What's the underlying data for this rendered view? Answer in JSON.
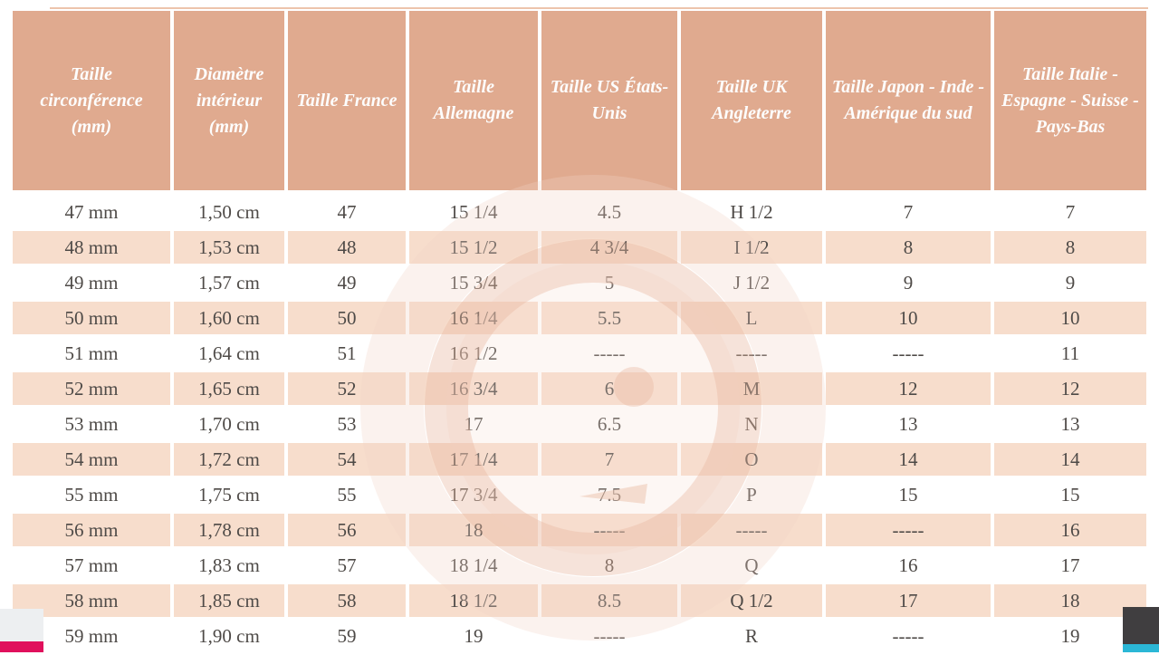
{
  "chart_data": {
    "type": "table",
    "title": "",
    "columns": [
      "Taille circonférence (mm)",
      "Diamètre intérieur (mm)",
      "Taille France",
      "Taille Allemagne",
      "Taille US États-Unis",
      "Taille UK Angleterre",
      "Taille Japon - Inde - Amérique du sud",
      "Taille Italie - Espagne - Suisse - Pays-Bas"
    ],
    "rows": [
      [
        "47 mm",
        "1,50 cm",
        "47",
        "15 1/4",
        "4.5",
        "H 1/2",
        "7",
        "7"
      ],
      [
        "48 mm",
        "1,53 cm",
        "48",
        "15 1/2",
        "4 3/4",
        "I 1/2",
        "8",
        "8"
      ],
      [
        "49 mm",
        "1,57 cm",
        "49",
        "15 3/4",
        "5",
        "J 1/2",
        "9",
        "9"
      ],
      [
        "50 mm",
        "1,60 cm",
        "50",
        "16 1/4",
        "5.5",
        "L",
        "10",
        "10"
      ],
      [
        "51 mm",
        "1,64 cm",
        "51",
        "16 1/2",
        "-----",
        "-----",
        "-----",
        "11"
      ],
      [
        "52 mm",
        "1,65 cm",
        "52",
        "16 3/4",
        "6",
        "M",
        "12",
        "12"
      ],
      [
        "53 mm",
        "1,70 cm",
        "53",
        "17",
        "6.5",
        "N",
        "13",
        "13"
      ],
      [
        "54 mm",
        "1,72 cm",
        "54",
        "17 1/4",
        "7",
        "O",
        "14",
        "14"
      ],
      [
        "55 mm",
        "1,75 cm",
        "55",
        "17 3/4",
        "7.5",
        "P",
        "15",
        "15"
      ],
      [
        "56 mm",
        "1,78 cm",
        "56",
        "18",
        "-----",
        "-----",
        "-----",
        "16"
      ],
      [
        "57 mm",
        "1,83 cm",
        "57",
        "18 1/4",
        "8",
        "Q",
        "16",
        "17"
      ],
      [
        "58 mm",
        "1,85 cm",
        "58",
        "18 1/2",
        "8.5",
        "Q 1/2",
        "17",
        "18"
      ],
      [
        "59 mm",
        "1,90 cm",
        "59",
        "19",
        "-----",
        "R",
        "-----",
        "19"
      ]
    ],
    "layout": {
      "grid": "white gaps between cells",
      "alternating_rows": "white / light peach, starting white",
      "header_position": "top"
    }
  },
  "watermark": {
    "letter": "G",
    "description": "faint circular brand monogram behind table center"
  },
  "colors": {
    "header_bg": "#e0aa8f",
    "header_text": "#fdfdfd",
    "row_alt_bg": "#f7ddcc",
    "body_text": "#4e4a47",
    "line_color": "#edc4ac",
    "watermark_ring": "#e8baa2",
    "watermark_glow": "#f3d5c6",
    "accent_magenta": "#e0105c",
    "accent_teal": "#2bb7d6",
    "br_dark": "#403e40",
    "bl_panel": "#edeff1"
  }
}
